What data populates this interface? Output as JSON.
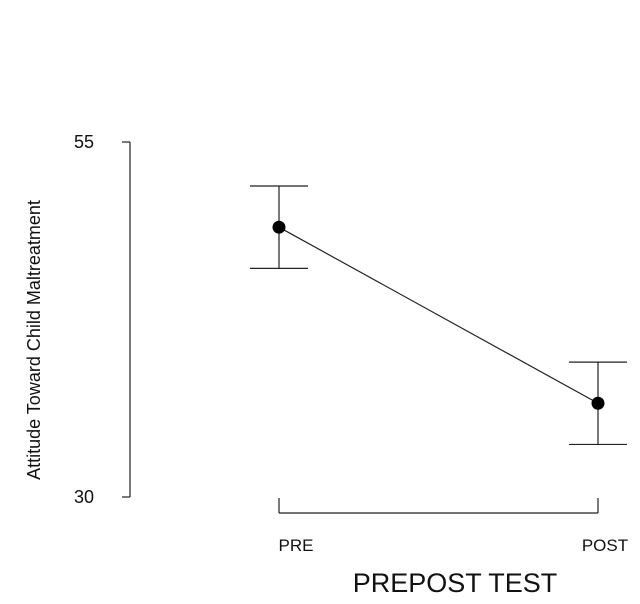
{
  "chart_data": {
    "type": "line",
    "title": "",
    "xlabel": "PREPOST TEST",
    "ylabel": "Attitude Toward Child Maltreatment",
    "categories": [
      "PRE",
      "POST"
    ],
    "series": [
      {
        "values": [
          49.0,
          36.6
        ],
        "error_low": [
          46.1,
          33.7
        ],
        "error_high": [
          51.9,
          39.5
        ]
      }
    ],
    "ylim": [
      30,
      55
    ],
    "yticks": [
      30,
      55
    ],
    "ytick_labels": [
      "30",
      "55"
    ],
    "grid": false,
    "legend": "none",
    "colors": {
      "line": "#222222",
      "marker": "#000000"
    }
  }
}
